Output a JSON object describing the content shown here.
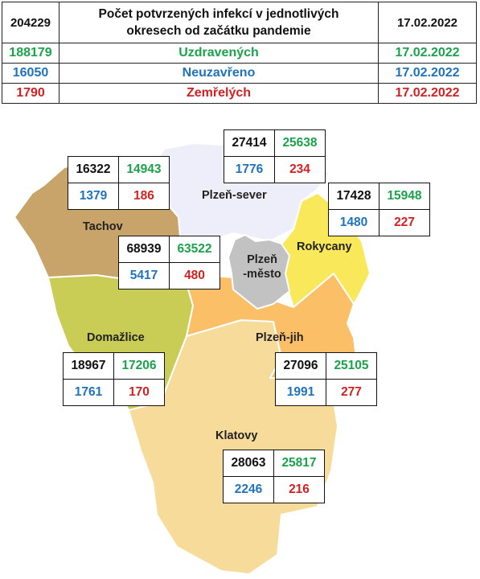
{
  "header": {
    "total": "204229",
    "title_line1": "Počet potvrzených infekcí v jednotlivých",
    "title_line2": "okresech od začátku pandemie",
    "date": "17.02.2022",
    "recovered_value": "188179",
    "recovered_label": "Uzdravených",
    "recovered_date": "17.02.2022",
    "open_value": "16050",
    "open_label": "Neuzavřeno",
    "open_date": "17.02.2022",
    "deaths_value": "1790",
    "deaths_label": "Zemřelých",
    "deaths_date": "17.02.2022"
  },
  "colors": {
    "total": "#111111",
    "recovered": "#1aa34a",
    "open": "#1e73be",
    "deaths": "#d42020",
    "tachov": "#c9a46a",
    "plzen_sever": "#eeeefa",
    "rokycany": "#f8e85a",
    "plzen_mesto": "#c2c2c2",
    "domazlice": "#c9cc55",
    "plzen_jih": "#fbbf67",
    "klatovy": "#f7db9a"
  },
  "districts": {
    "tachov": {
      "name": "Tachov",
      "total": "16322",
      "recovered": "14943",
      "open": "1379",
      "deaths": "186"
    },
    "plzen_sever": {
      "name": "Plzeň-sever",
      "total": "27414",
      "recovered": "25638",
      "open": "1776",
      "deaths": "234"
    },
    "rokycany": {
      "name": "Rokycany",
      "total": "17428",
      "recovered": "15948",
      "open": "1480",
      "deaths": "227"
    },
    "plzen_mesto": {
      "name_line1": "Plzeň",
      "name_line2": "-město",
      "total": "68939",
      "recovered": "63522",
      "open": "5417",
      "deaths": "480"
    },
    "domazlice": {
      "name": "Domažlice",
      "total": "18967",
      "recovered": "17206",
      "open": "1761",
      "deaths": "170"
    },
    "plzen_jih": {
      "name": "Plzeň-jih",
      "total": "27096",
      "recovered": "25105",
      "open": "1991",
      "deaths": "277"
    },
    "klatovy": {
      "name": "Klatovy",
      "total": "28063",
      "recovered": "25817",
      "open": "2246",
      "deaths": "216"
    }
  }
}
